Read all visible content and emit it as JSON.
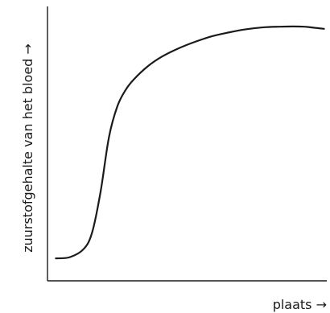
{
  "chart_data": {
    "type": "line",
    "title": "",
    "xlabel": "plaats →",
    "ylabel": "zuurstofgehalte van het bloed →",
    "xlim": [
      0,
      100
    ],
    "ylim": [
      0,
      100
    ],
    "grid": false,
    "legend": "none",
    "ticks": "none",
    "series": [
      {
        "x": [
          3,
          8,
          13,
          16,
          19,
          22,
          25,
          28,
          31,
          36,
          41,
          47,
          53,
          59,
          65,
          71,
          77,
          83,
          88,
          92,
          96,
          99
        ],
        "y": [
          2,
          2.5,
          6,
          13,
          30,
          53,
          66,
          73,
          77.5,
          83,
          87,
          90.5,
          93.3,
          95.6,
          97.2,
          98.5,
          99.3,
          99.6,
          99.7,
          99.6,
          99.1,
          98.7
        ]
      }
    ]
  }
}
